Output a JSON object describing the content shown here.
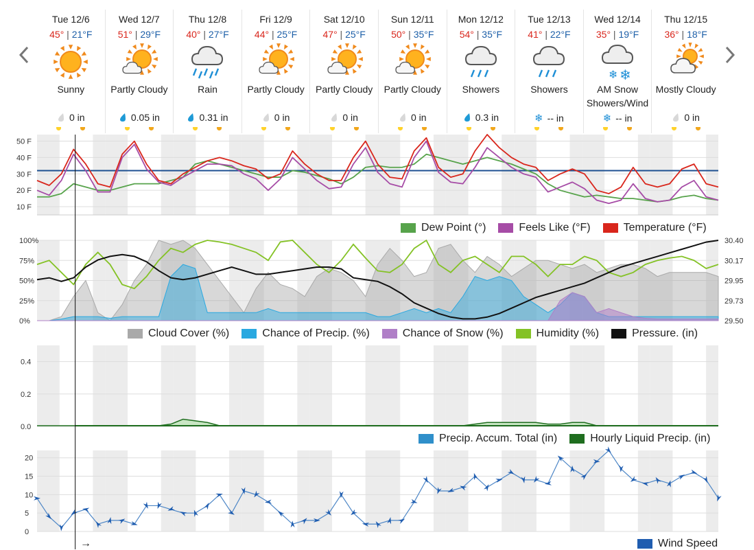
{
  "nav": {
    "prev_icon": "chevron-left-icon",
    "next_icon": "chevron-right-icon"
  },
  "days": [
    {
      "name": "Tue 12/6",
      "hi": "45°",
      "lo": "21°F",
      "icon": "sunny-icon",
      "condition": "Sunny",
      "precip": "0 in",
      "precip_icon": "dry-drop-icon"
    },
    {
      "name": "Wed 12/7",
      "hi": "51°",
      "lo": "29°F",
      "icon": "partly-cloudy-icon",
      "condition": "Partly Cloudy",
      "precip": "0.05 in",
      "precip_icon": "rain-drop-icon"
    },
    {
      "name": "Thu 12/8",
      "hi": "40°",
      "lo": "27°F",
      "icon": "rain-icon",
      "condition": "Rain",
      "precip": "0.31 in",
      "precip_icon": "rain-drop-icon"
    },
    {
      "name": "Fri 12/9",
      "hi": "44°",
      "lo": "25°F",
      "icon": "partly-cloudy-icon",
      "condition": "Partly Cloudy",
      "precip": "0 in",
      "precip_icon": "dry-drop-icon"
    },
    {
      "name": "Sat 12/10",
      "hi": "47°",
      "lo": "25°F",
      "icon": "partly-cloudy-icon",
      "condition": "Partly Cloudy",
      "precip": "0 in",
      "precip_icon": "dry-drop-icon"
    },
    {
      "name": "Sun 12/11",
      "hi": "50°",
      "lo": "35°F",
      "icon": "partly-cloudy-icon",
      "condition": "Partly Cloudy",
      "precip": "0 in",
      "precip_icon": "dry-drop-icon"
    },
    {
      "name": "Mon 12/12",
      "hi": "54°",
      "lo": "35°F",
      "icon": "showers-icon",
      "condition": "Showers",
      "precip": "0.3 in",
      "precip_icon": "rain-drop-icon"
    },
    {
      "name": "Tue 12/13",
      "hi": "41°",
      "lo": "22°F",
      "icon": "showers-icon",
      "condition": "Showers",
      "precip": "-- in",
      "precip_icon": "snowflake-icon"
    },
    {
      "name": "Wed 12/14",
      "hi": "35°",
      "lo": "19°F",
      "icon": "snow-showers-icon",
      "condition": "AM Snow Showers/Wind",
      "precip": "-- in",
      "precip_icon": "snowflake-icon"
    },
    {
      "name": "Thu 12/15",
      "hi": "36°",
      "lo": "18°F",
      "icon": "mostly-cloudy-icon",
      "condition": "Mostly Cloudy",
      "precip": "0 in",
      "precip_icon": "dry-drop-icon"
    }
  ],
  "colors": {
    "temperature": "#d9261c",
    "feels_like": "#a64ca6",
    "dew_point": "#57a34b",
    "cloud_cover": "#a9a9a9",
    "chance_precip": "#29a8e0",
    "chance_snow": "#b07fc7",
    "humidity": "#84c225",
    "pressure": "#111111",
    "precip_total": "#2f8fca",
    "hourly_precip": "#1f6e1f",
    "wind_speed": "#1f5db0",
    "freezing_line": "#1d4f91"
  },
  "legends": {
    "temp": [
      {
        "label": "Dew Point (°)",
        "color": "#57a34b"
      },
      {
        "label": "Feels Like (°F)",
        "color": "#a64ca6"
      },
      {
        "label": "Temperature (°F)",
        "color": "#d9261c"
      }
    ],
    "cloud": [
      {
        "label": "Cloud Cover (%)",
        "color": "#a9a9a9"
      },
      {
        "label": "Chance of Precip. (%)",
        "color": "#29a8e0"
      },
      {
        "label": "Chance of Snow (%)",
        "color": "#b07fc7"
      },
      {
        "label": "Humidity (%)",
        "color": "#84c225"
      },
      {
        "label": "Pressure. (in)",
        "color": "#111111"
      }
    ],
    "precip": [
      {
        "label": "Precip. Accum. Total (in)",
        "color": "#2f8fca"
      },
      {
        "label": "Hourly Liquid Precip. (in)",
        "color": "#1f6e1f"
      }
    ],
    "wind": [
      {
        "label": "Wind Speed",
        "color": "#1f5db0"
      }
    ]
  },
  "now_marker": {
    "day_offset": 0.56,
    "label": "→"
  },
  "chart_data": [
    {
      "type": "line",
      "id": "temp",
      "y_ticks": [
        "10 F",
        "20 F",
        "30 F",
        "40 F",
        "50 F"
      ],
      "ylim": [
        5,
        54
      ],
      "freezing_line": 32,
      "x_days": 10,
      "series": [
        {
          "name": "Temperature (°F)",
          "key": "temperature",
          "step_hours": 6,
          "values": [
            26,
            23,
            30,
            45,
            36,
            24,
            22,
            42,
            50,
            36,
            26,
            24,
            30,
            34,
            38,
            40,
            38,
            35,
            33,
            27,
            30,
            44,
            36,
            30,
            26,
            26,
            40,
            50,
            36,
            28,
            27,
            44,
            52,
            34,
            28,
            30,
            44,
            54,
            46,
            40,
            36,
            34,
            26,
            30,
            33,
            30,
            20,
            18,
            22,
            34,
            24,
            22,
            24,
            33,
            36,
            24,
            22
          ]
        },
        {
          "name": "Feels Like (°F)",
          "key": "feels_like",
          "step_hours": 6,
          "values": [
            20,
            17,
            26,
            42,
            32,
            19,
            19,
            40,
            48,
            33,
            25,
            23,
            28,
            32,
            36,
            36,
            35,
            30,
            27,
            20,
            27,
            40,
            33,
            26,
            21,
            22,
            36,
            46,
            31,
            24,
            22,
            40,
            50,
            31,
            25,
            24,
            34,
            46,
            40,
            34,
            30,
            28,
            19,
            22,
            25,
            21,
            14,
            12,
            14,
            24,
            15,
            13,
            14,
            22,
            26,
            16,
            14
          ]
        },
        {
          "name": "Dew Point (°)",
          "key": "dew_point",
          "step_hours": 6,
          "values": [
            16,
            16,
            18,
            24,
            22,
            20,
            20,
            22,
            24,
            24,
            24,
            26,
            28,
            36,
            38,
            36,
            34,
            32,
            30,
            28,
            28,
            32,
            31,
            29,
            27,
            24,
            28,
            34,
            35,
            34,
            34,
            36,
            42,
            40,
            38,
            36,
            38,
            40,
            38,
            36,
            33,
            30,
            24,
            20,
            18,
            16,
            17,
            16,
            15,
            15,
            14,
            13,
            14,
            16,
            17,
            15,
            14
          ]
        }
      ]
    },
    {
      "type": "area",
      "id": "cloud",
      "y_ticks_left": [
        "0%",
        "25%",
        "50%",
        "75%",
        "100%"
      ],
      "y_ticks_right": [
        "29.50",
        "29.73",
        "29.95",
        "30.17",
        "30.40"
      ],
      "ylim": [
        0,
        100
      ],
      "ylim_right": [
        29.5,
        30.4
      ],
      "series": [
        {
          "name": "Cloud Cover (%)",
          "key": "cloud_cover",
          "fill": true,
          "step_hours": 6,
          "values": [
            0,
            0,
            5,
            30,
            50,
            10,
            0,
            20,
            50,
            70,
            100,
            95,
            100,
            90,
            70,
            50,
            30,
            10,
            40,
            60,
            45,
            40,
            30,
            55,
            65,
            60,
            50,
            30,
            70,
            90,
            75,
            55,
            60,
            90,
            95,
            75,
            60,
            80,
            70,
            55,
            65,
            75,
            75,
            70,
            65,
            70,
            60,
            65,
            70,
            70,
            65,
            55,
            60,
            60,
            60,
            60,
            55
          ]
        },
        {
          "name": "Chance of Precip. (%)",
          "key": "chance_precip",
          "fill": true,
          "step_hours": 6,
          "values": [
            0,
            0,
            2,
            5,
            5,
            5,
            3,
            5,
            5,
            5,
            5,
            55,
            70,
            65,
            10,
            10,
            10,
            10,
            10,
            15,
            10,
            10,
            10,
            10,
            10,
            10,
            10,
            10,
            5,
            5,
            10,
            15,
            10,
            15,
            10,
            30,
            55,
            50,
            55,
            50,
            30,
            20,
            10,
            20,
            35,
            30,
            10,
            5,
            5,
            5,
            5,
            5,
            5,
            5,
            5,
            5,
            5
          ]
        },
        {
          "name": "Chance of Snow (%)",
          "key": "chance_snow",
          "fill": true,
          "step_hours": 6,
          "values": [
            0,
            0,
            0,
            0,
            0,
            0,
            0,
            0,
            0,
            0,
            0,
            0,
            0,
            0,
            0,
            0,
            0,
            0,
            0,
            0,
            0,
            0,
            0,
            0,
            0,
            0,
            0,
            0,
            0,
            0,
            0,
            0,
            0,
            0,
            0,
            0,
            0,
            0,
            0,
            0,
            0,
            0,
            0,
            25,
            35,
            30,
            10,
            15,
            10,
            5,
            3,
            2,
            2,
            2,
            2,
            2,
            2
          ]
        },
        {
          "name": "Humidity (%)",
          "key": "humidity",
          "step_hours": 6,
          "values": [
            70,
            75,
            60,
            45,
            70,
            85,
            70,
            45,
            40,
            55,
            75,
            90,
            85,
            95,
            100,
            98,
            95,
            90,
            85,
            75,
            98,
            100,
            85,
            70,
            60,
            75,
            95,
            78,
            62,
            60,
            70,
            90,
            100,
            70,
            60,
            75,
            80,
            70,
            60,
            80,
            80,
            70,
            55,
            70,
            70,
            80,
            75,
            60,
            55,
            60,
            70,
            75,
            78,
            80,
            75,
            65,
            70
          ]
        },
        {
          "name": "Pressure. (in)",
          "key": "pressure",
          "axis": "right",
          "step_hours": 6,
          "values": [
            29.96,
            29.98,
            29.94,
            29.98,
            30.1,
            30.18,
            30.22,
            30.24,
            30.22,
            30.16,
            30.06,
            29.98,
            29.96,
            29.98,
            30.02,
            30.06,
            30.1,
            30.06,
            30.02,
            30.02,
            30.04,
            30.06,
            30.08,
            30.1,
            30.1,
            30.08,
            29.98,
            29.96,
            29.94,
            29.88,
            29.8,
            29.7,
            29.64,
            29.58,
            29.54,
            29.52,
            29.52,
            29.54,
            29.58,
            29.64,
            29.7,
            29.76,
            29.8,
            29.84,
            29.88,
            29.92,
            29.98,
            30.04,
            30.1,
            30.14,
            30.18,
            30.22,
            30.26,
            30.3,
            30.34,
            30.38,
            30.4
          ]
        }
      ]
    },
    {
      "type": "area",
      "id": "precip",
      "y_ticks": [
        "0.0",
        "0.2",
        "0.4"
      ],
      "ylim": [
        0,
        0.5
      ],
      "series": [
        {
          "name": "Precip. Accum. Total (in)",
          "key": "precip_total",
          "fill": true,
          "step_hours": 6,
          "values": [
            0,
            0,
            0,
            0,
            0,
            0,
            0,
            0,
            0,
            0,
            0,
            0,
            0,
            0,
            0,
            0,
            0,
            0,
            0,
            0,
            0,
            0,
            0,
            0,
            0,
            0,
            0,
            0,
            0,
            0,
            0,
            0,
            0,
            0,
            0,
            0,
            0,
            0,
            0,
            0,
            0,
            0,
            0,
            0,
            0,
            0,
            0,
            0,
            0,
            0,
            0,
            0,
            0,
            0,
            0,
            0,
            0
          ]
        },
        {
          "name": "Hourly Liquid Precip. (in)",
          "key": "hourly_precip",
          "fill": true,
          "step_hours": 6,
          "values": [
            0,
            0,
            0,
            0,
            0,
            0,
            0,
            0,
            0,
            0,
            0,
            0.01,
            0.04,
            0.03,
            0.02,
            0,
            0,
            0,
            0,
            0,
            0,
            0,
            0,
            0,
            0,
            0,
            0,
            0,
            0,
            0,
            0,
            0,
            0,
            0,
            0,
            0,
            0.01,
            0.02,
            0.02,
            0.02,
            0.02,
            0.02,
            0.01,
            0.01,
            0.02,
            0.02,
            0,
            0,
            0,
            0,
            0,
            0,
            0,
            0,
            0,
            0,
            0
          ]
        }
      ]
    },
    {
      "type": "line",
      "id": "wind",
      "y_ticks": [
        "0",
        "5",
        "10",
        "15",
        "20"
      ],
      "ylim": [
        0,
        22
      ],
      "series": [
        {
          "name": "Wind Speed",
          "key": "wind_speed",
          "step_hours": 6,
          "values": [
            9,
            4,
            1,
            5,
            6,
            2,
            3,
            3,
            2,
            7,
            7,
            6,
            5,
            5,
            7,
            10,
            5,
            11,
            10,
            8,
            5,
            2,
            3,
            3,
            5,
            10,
            5,
            2,
            2,
            3,
            3,
            8,
            14,
            11,
            11,
            12,
            15,
            12,
            14,
            16,
            14,
            14,
            13,
            20,
            17,
            15,
            19,
            22,
            17,
            14,
            13,
            14,
            13,
            15,
            16,
            14,
            9
          ]
        }
      ]
    }
  ]
}
